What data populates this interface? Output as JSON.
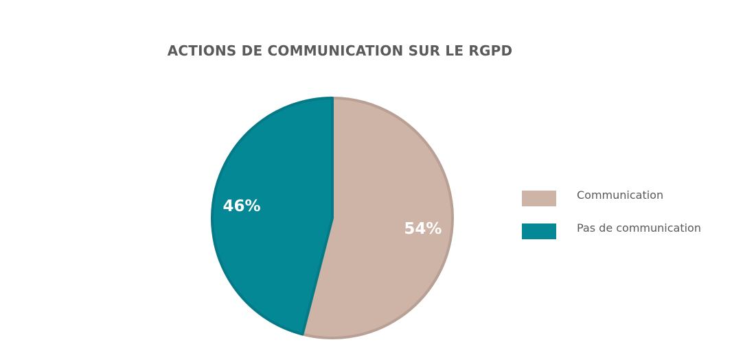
{
  "chart_data": {
    "type": "pie",
    "title": "ACTIONS DE COMMUNICATION SUR LE RGPD",
    "categories": [
      "Communication",
      "Pas de communication"
    ],
    "values": [
      54,
      46
    ],
    "labels": [
      "54%",
      "46%"
    ],
    "colors": [
      "#ceb4a7",
      "#048896"
    ],
    "border_colors": [
      "#b9a095",
      "#037a86"
    ],
    "legend_position": "right"
  }
}
